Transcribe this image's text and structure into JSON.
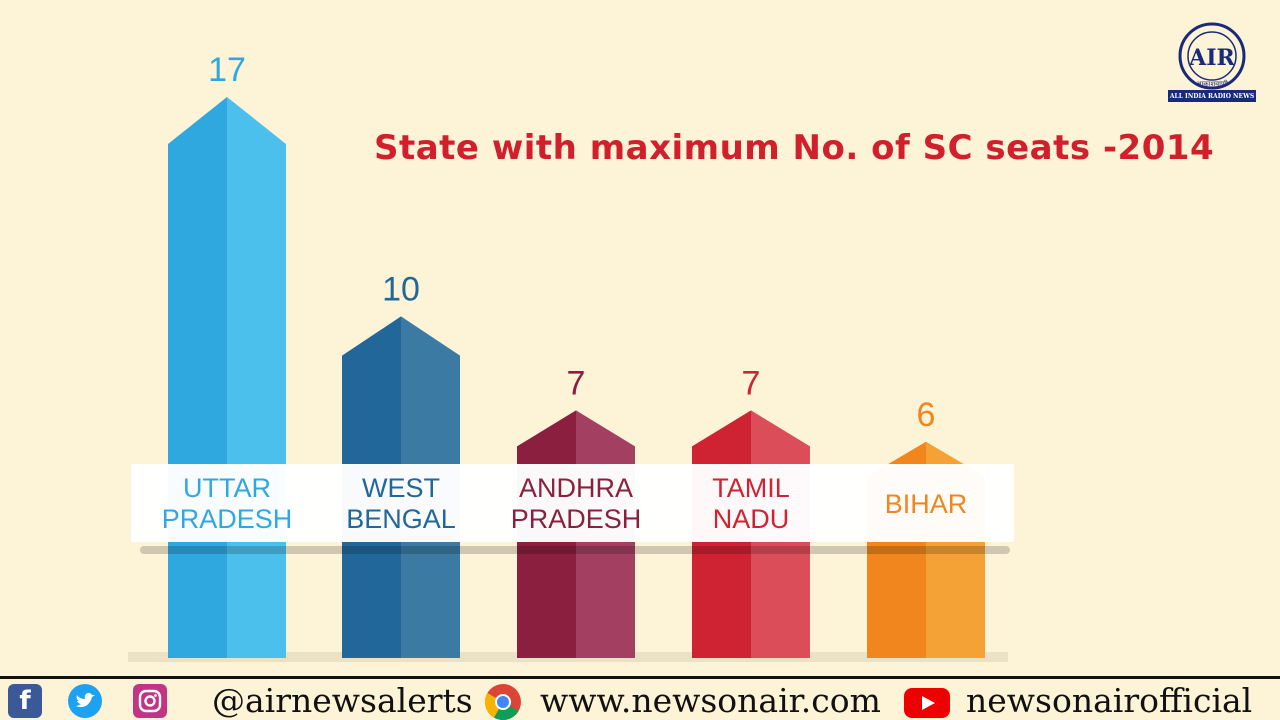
{
  "chart_data": {
    "type": "bar",
    "title": "State with maximum No. of SC seats -2014",
    "categories": [
      [
        "UTTAR",
        "PRADESH"
      ],
      [
        "WEST",
        "BENGAL"
      ],
      [
        "ANDHRA",
        "PRADESH"
      ],
      [
        "TAMIL",
        "NADU"
      ],
      [
        "BIHAR"
      ]
    ],
    "values": [
      17,
      10,
      7,
      7,
      6
    ],
    "value_labels": [
      "17",
      "10",
      "7",
      "7",
      "6"
    ],
    "colors": [
      {
        "dark": "#2fa8e0",
        "light": "#4cc0ec",
        "label": "#2fa8e0"
      },
      {
        "dark": "#21679a",
        "light": "#3a7aa3",
        "label": "#21679a"
      },
      {
        "dark": "#8a1f3f",
        "light": "#a34062",
        "label": "#8a1f3f"
      },
      {
        "dark": "#cf2232",
        "light": "#dc4d5a",
        "label": "#cf2232"
      },
      {
        "dark": "#f0861d",
        "light": "#f4a136",
        "label": "#f0861d"
      }
    ]
  },
  "logo": {
    "letters": "AIR",
    "banner": "ALL INDIA RADIO NEWS",
    "sub": "आकाशवाणी"
  },
  "footer": {
    "handle": "@airnewsalerts",
    "website": "www.newsonair.com",
    "channel": "newsonairofficial",
    "icons": [
      "facebook-icon",
      "twitter-icon",
      "instagram-icon",
      "chrome-icon",
      "youtube-icon"
    ]
  }
}
